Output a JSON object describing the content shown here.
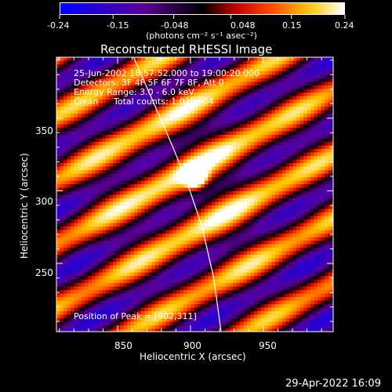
{
  "colorbar": {
    "ticks": [
      "-0.24",
      "-0.15",
      "-0.048",
      "0.048",
      "0.15",
      "0.24"
    ],
    "units": "(photons cm⁻² s⁻¹ asec⁻²)"
  },
  "chart_data": {
    "type": "heatmap",
    "title": "Reconstructed RHESSI Image",
    "xlabel": "Heliocentric X (arcsec)",
    "ylabel": "Heliocentric Y (arcsec)",
    "xlim": [
      808,
      998
    ],
    "ylim": [
      203,
      392
    ],
    "x_ticks": [
      850,
      900,
      950
    ],
    "y_ticks": [
      250,
      300,
      350
    ],
    "value_range": [
      -0.24,
      0.24
    ],
    "colormap": "blue-purple-red-yellow-white",
    "peak": {
      "x": 902,
      "y": 311
    },
    "limb_curve": [
      [
        861,
        392
      ],
      [
        875,
        360
      ],
      [
        888,
        330
      ],
      [
        898,
        305
      ],
      [
        908,
        275
      ],
      [
        916,
        240
      ],
      [
        921,
        203
      ]
    ],
    "annotations": {
      "time_range": "25-Jun-2002 18:57:52.000 to 19:00:20.000",
      "detectors": "Detectors: 3F 4F 5F 6F 7F 8F, Att 0",
      "energy": "Energy Range: 3.0 - 6.0 keV",
      "method": "Clean",
      "counts": "Total counts: 1.02E+04",
      "peak_label": "Position of Peak = [902,311]"
    }
  },
  "footer": {
    "datetime": "29-Apr-2022 16:09"
  }
}
